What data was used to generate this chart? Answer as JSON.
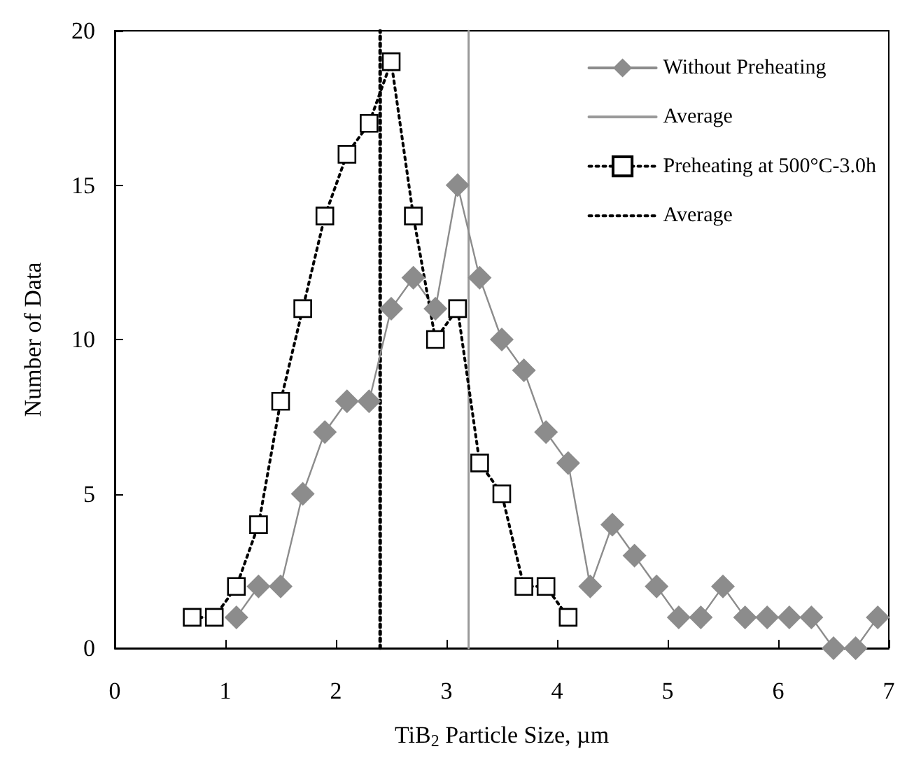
{
  "chart_data": {
    "type": "line",
    "xlabel": "TiB$_{2}$ Particle Size, µm",
    "ylabel": "Number of Data",
    "xlim": [
      0,
      7
    ],
    "xticks": [
      0,
      1,
      2,
      3,
      4,
      5,
      6,
      7
    ],
    "ylim": [
      0,
      20
    ],
    "yticks": [
      0,
      5,
      10,
      15,
      20
    ],
    "grid": false,
    "legend": "top right",
    "series": [
      {
        "name": "Without Preheating",
        "color": "#8c8c8c",
        "marker": "diamond",
        "line_style": "solid",
        "x": [
          1.1,
          1.3,
          1.5,
          1.7,
          1.9,
          2.1,
          2.3,
          2.5,
          2.7,
          2.9,
          3.1,
          3.3,
          3.5,
          3.7,
          3.9,
          4.1,
          4.3,
          4.5,
          4.7,
          4.9,
          5.1,
          5.3,
          5.5,
          5.7,
          5.9,
          6.1,
          6.3,
          6.5,
          6.7,
          6.9
        ],
        "values": [
          1,
          2,
          2,
          5,
          7,
          8,
          8,
          11,
          12,
          11,
          15,
          12,
          10,
          9,
          7,
          6,
          2,
          4,
          3,
          2,
          1,
          1,
          2,
          1,
          1,
          1,
          1,
          0,
          0,
          1
        ]
      },
      {
        "name": "Average",
        "color": "#999999",
        "marker": "none",
        "line_style": "solid",
        "x": [
          3.2,
          3.2
        ],
        "values": [
          0,
          20
        ]
      },
      {
        "name": "Preheating at 500°C-3.0h",
        "color": "#000000",
        "marker": "square",
        "line_style": "dotted",
        "x": [
          0.7,
          0.9,
          1.1,
          1.3,
          1.5,
          1.7,
          1.9,
          2.1,
          2.3,
          2.5,
          2.7,
          2.9,
          3.1,
          3.3,
          3.5,
          3.7,
          3.9,
          4.1
        ],
        "values": [
          1,
          1,
          2,
          4,
          8,
          11,
          14,
          16,
          17,
          19,
          14,
          10,
          11,
          6,
          5,
          2,
          2,
          1
        ]
      },
      {
        "name": "Average",
        "color": "#000000",
        "marker": "none",
        "line_style": "dotted",
        "x": [
          2.4,
          2.4
        ],
        "values": [
          0,
          20
        ]
      }
    ]
  }
}
